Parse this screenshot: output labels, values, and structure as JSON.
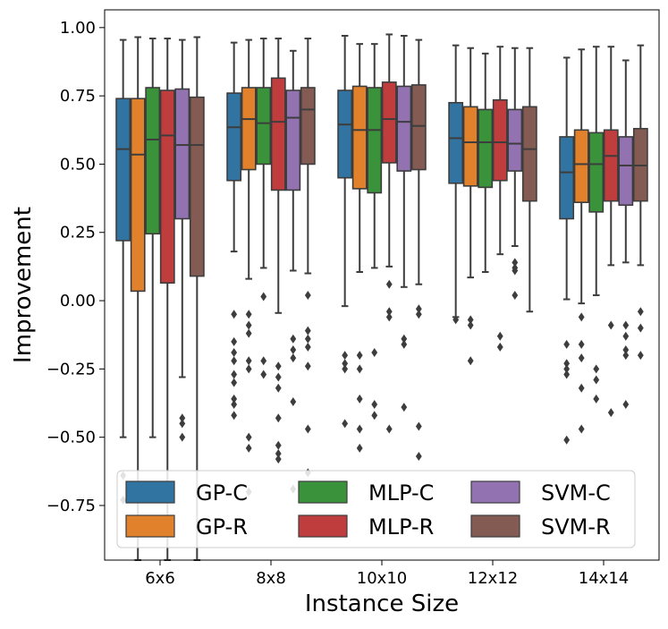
{
  "chart_data": {
    "type": "boxplot",
    "title": "",
    "xlabel": "Instance Size",
    "ylabel": "Improvement",
    "ylim": [
      -0.95,
      1.065
    ],
    "yticks": [
      1.0,
      0.75,
      0.5,
      0.25,
      0.0,
      -0.25,
      -0.5,
      -0.75
    ],
    "ytick_labels": [
      "1.00",
      "0.75",
      "0.50",
      "0.25",
      "0.00",
      "−0.25",
      "−0.50",
      "−0.75"
    ],
    "categories": [
      "6x6",
      "8x8",
      "10x10",
      "12x12",
      "14x14"
    ],
    "legend_position": "lower-center",
    "series": [
      {
        "name": "GP-C",
        "color": "#3274a1",
        "boxes": [
          {
            "whislo": -0.5,
            "q1": 0.22,
            "med": 0.555,
            "q3": 0.74,
            "whishi": 0.955,
            "fliers": [
              -0.64,
              -0.73
            ]
          },
          {
            "whislo": 0.18,
            "q1": 0.44,
            "med": 0.635,
            "q3": 0.76,
            "whishi": 0.945,
            "fliers": [
              -0.05,
              -0.15,
              -0.19,
              -0.22,
              -0.27,
              -0.3,
              -0.36,
              -0.38,
              -0.42
            ]
          },
          {
            "whislo": -0.02,
            "q1": 0.45,
            "med": 0.645,
            "q3": 0.77,
            "whishi": 0.97,
            "fliers": [
              -0.2,
              -0.23,
              -0.25,
              -0.45
            ]
          },
          {
            "whislo": -0.06,
            "q1": 0.43,
            "med": 0.595,
            "q3": 0.725,
            "whishi": 0.935,
            "fliers": [
              -0.07
            ]
          },
          {
            "whislo": 0.005,
            "q1": 0.3,
            "med": 0.47,
            "q3": 0.6,
            "whishi": 0.89,
            "fliers": [
              -0.16,
              -0.23,
              -0.25,
              -0.27,
              -0.51
            ]
          }
        ]
      },
      {
        "name": "GP-R",
        "color": "#e1812c",
        "boxes": [
          {
            "whislo": -0.95,
            "q1": 0.035,
            "med": 0.535,
            "q3": 0.74,
            "whishi": 0.965,
            "fliers": []
          },
          {
            "whislo": 0.08,
            "q1": 0.48,
            "med": 0.665,
            "q3": 0.78,
            "whishi": 0.955,
            "fliers": [
              -0.05,
              -0.09,
              -0.12,
              -0.22,
              -0.25,
              -0.5,
              -0.54,
              -0.7
            ]
          },
          {
            "whislo": 0.105,
            "q1": 0.41,
            "med": 0.625,
            "q3": 0.785,
            "whishi": 0.94,
            "fliers": [
              -0.2,
              -0.25,
              -0.36,
              -0.47,
              -0.54
            ]
          },
          {
            "whislo": 0.085,
            "q1": 0.42,
            "med": 0.58,
            "q3": 0.71,
            "whishi": 0.925,
            "fliers": [
              -0.07,
              -0.09,
              -0.22
            ]
          },
          {
            "whislo": -0.01,
            "q1": 0.36,
            "med": 0.5,
            "q3": 0.625,
            "whishi": 0.92,
            "fliers": [
              -0.06,
              -0.16,
              -0.21,
              -0.32,
              -0.47
            ]
          }
        ]
      },
      {
        "name": "MLP-C",
        "color": "#3a923a",
        "boxes": [
          {
            "whislo": -0.5,
            "q1": 0.245,
            "med": 0.59,
            "q3": 0.78,
            "whishi": 0.96,
            "fliers": []
          },
          {
            "whislo": 0.12,
            "q1": 0.5,
            "med": 0.65,
            "q3": 0.78,
            "whishi": 0.96,
            "fliers": [
              0.015,
              -0.22,
              -0.27
            ]
          },
          {
            "whislo": 0.12,
            "q1": 0.395,
            "med": 0.625,
            "q3": 0.78,
            "whishi": 0.94,
            "fliers": [
              -0.19,
              -0.38,
              -0.42
            ]
          },
          {
            "whislo": 0.105,
            "q1": 0.415,
            "med": 0.58,
            "q3": 0.7,
            "whishi": 0.905,
            "fliers": []
          },
          {
            "whislo": 0.02,
            "q1": 0.325,
            "med": 0.5,
            "q3": 0.615,
            "whishi": 0.93,
            "fliers": [
              -0.25,
              -0.29,
              -0.36
            ]
          }
        ]
      },
      {
        "name": "MLP-R",
        "color": "#c03d3e",
        "boxes": [
          {
            "whislo": -0.95,
            "q1": 0.065,
            "med": 0.605,
            "q3": 0.77,
            "whishi": 0.96,
            "fliers": []
          },
          {
            "whislo": -0.045,
            "q1": 0.405,
            "med": 0.655,
            "q3": 0.815,
            "whishi": 0.96,
            "fliers": [
              -0.24,
              -0.28,
              -0.32,
              -0.43,
              -0.53,
              -0.56,
              -0.58
            ]
          },
          {
            "whislo": 0.125,
            "q1": 0.505,
            "med": 0.665,
            "q3": 0.8,
            "whishi": 0.975,
            "fliers": [
              0.06,
              -0.04,
              -0.06,
              -0.47
            ]
          },
          {
            "whislo": 0.17,
            "q1": 0.44,
            "med": 0.58,
            "q3": 0.735,
            "whishi": 0.93,
            "fliers": [
              -0.13,
              -0.17
            ]
          },
          {
            "whislo": 0.13,
            "q1": 0.365,
            "med": 0.53,
            "q3": 0.625,
            "whishi": 0.93,
            "fliers": [
              -0.09,
              -0.41
            ]
          }
        ]
      },
      {
        "name": "SVM-C",
        "color": "#9372b2",
        "boxes": [
          {
            "whislo": -0.28,
            "q1": 0.3,
            "med": 0.57,
            "q3": 0.775,
            "whishi": 0.955,
            "fliers": [
              -0.43,
              -0.45,
              -0.5
            ]
          },
          {
            "whislo": 0.11,
            "q1": 0.405,
            "med": 0.67,
            "q3": 0.77,
            "whishi": 0.915,
            "fliers": [
              -0.14,
              -0.18,
              -0.21,
              -0.37,
              -0.69
            ]
          },
          {
            "whislo": 0.05,
            "q1": 0.475,
            "med": 0.655,
            "q3": 0.785,
            "whishi": 0.97,
            "fliers": [
              -0.14,
              -0.16,
              -0.39
            ]
          },
          {
            "whislo": 0.2,
            "q1": 0.475,
            "med": 0.575,
            "q3": 0.7,
            "whishi": 0.925,
            "fliers": [
              0.14,
              0.12,
              0.11,
              0.02
            ]
          },
          {
            "whislo": 0.14,
            "q1": 0.35,
            "med": 0.495,
            "q3": 0.6,
            "whishi": 0.88,
            "fliers": [
              -0.09,
              -0.13,
              -0.18,
              -0.2,
              -0.38
            ]
          }
        ]
      },
      {
        "name": "SVM-R",
        "color": "#845b53",
        "boxes": [
          {
            "whislo": -0.95,
            "q1": 0.09,
            "med": 0.57,
            "q3": 0.745,
            "whishi": 0.965,
            "fliers": []
          },
          {
            "whislo": 0.1,
            "q1": 0.5,
            "med": 0.7,
            "q3": 0.78,
            "whishi": 0.96,
            "fliers": [
              0.02,
              -0.11,
              -0.14,
              -0.17,
              -0.24,
              -0.47,
              -0.63
            ]
          },
          {
            "whislo": 0.06,
            "q1": 0.48,
            "med": 0.64,
            "q3": 0.79,
            "whishi": 0.955,
            "fliers": [
              -0.03,
              -0.05,
              -0.46,
              -0.57
            ]
          },
          {
            "whislo": -0.04,
            "q1": 0.365,
            "med": 0.555,
            "q3": 0.71,
            "whishi": 0.925,
            "fliers": []
          },
          {
            "whislo": 0.13,
            "q1": 0.365,
            "med": 0.495,
            "q3": 0.63,
            "whishi": 0.935,
            "fliers": [
              -0.04,
              -0.1,
              -0.2
            ]
          }
        ]
      }
    ]
  }
}
